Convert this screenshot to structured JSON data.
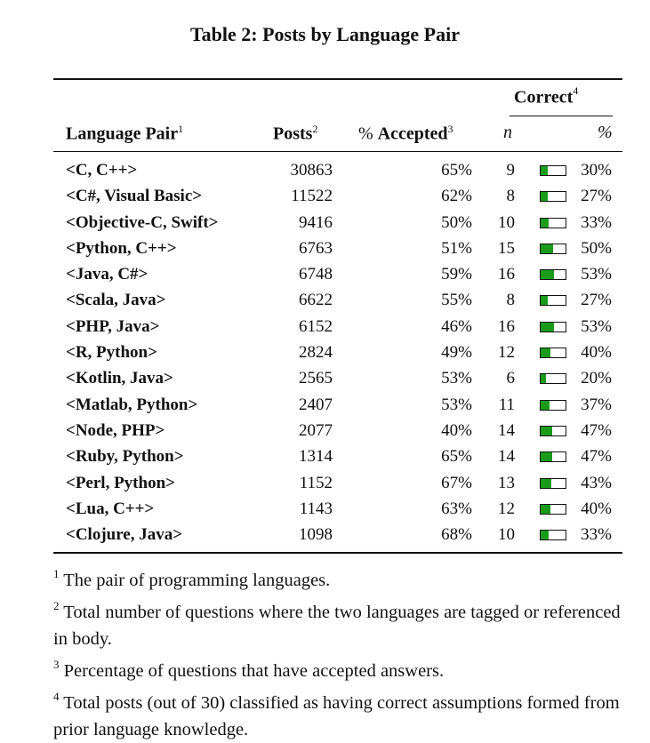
{
  "caption": "Table 2: Posts by Language Pair",
  "header": {
    "language_pair": "Language Pair",
    "language_pair_sup": "1",
    "posts": "Posts",
    "posts_sup": "2",
    "pct_symbol": "%",
    "accepted": "Accepted",
    "accepted_sup": "3",
    "correct": "Correct",
    "correct_sup": "4",
    "n": "n",
    "pct": "%"
  },
  "rows": [
    {
      "pair": "<C, C++>",
      "posts": "30863",
      "accepted": "65%",
      "n": "9",
      "correct": "30%",
      "fraction": 0.3
    },
    {
      "pair": "<C#, Visual Basic>",
      "posts": "11522",
      "accepted": "62%",
      "n": "8",
      "correct": "27%",
      "fraction": 0.27
    },
    {
      "pair": "<Objective-C, Swift>",
      "posts": "9416",
      "accepted": "50%",
      "n": "10",
      "correct": "33%",
      "fraction": 0.33
    },
    {
      "pair": "<Python, C++>",
      "posts": "6763",
      "accepted": "51%",
      "n": "15",
      "correct": "50%",
      "fraction": 0.5
    },
    {
      "pair": "<Java, C#>",
      "posts": "6748",
      "accepted": "59%",
      "n": "16",
      "correct": "53%",
      "fraction": 0.53
    },
    {
      "pair": "<Scala, Java>",
      "posts": "6622",
      "accepted": "55%",
      "n": "8",
      "correct": "27%",
      "fraction": 0.27
    },
    {
      "pair": "<PHP, Java>",
      "posts": "6152",
      "accepted": "46%",
      "n": "16",
      "correct": "53%",
      "fraction": 0.53
    },
    {
      "pair": "<R, Python>",
      "posts": "2824",
      "accepted": "49%",
      "n": "12",
      "correct": "40%",
      "fraction": 0.4
    },
    {
      "pair": "<Kotlin, Java>",
      "posts": "2565",
      "accepted": "53%",
      "n": "6",
      "correct": "20%",
      "fraction": 0.2
    },
    {
      "pair": "<Matlab, Python>",
      "posts": "2407",
      "accepted": "53%",
      "n": "11",
      "correct": "37%",
      "fraction": 0.37
    },
    {
      "pair": "<Node, PHP>",
      "posts": "2077",
      "accepted": "40%",
      "n": "14",
      "correct": "47%",
      "fraction": 0.47
    },
    {
      "pair": "<Ruby, Python>",
      "posts": "1314",
      "accepted": "65%",
      "n": "14",
      "correct": "47%",
      "fraction": 0.47
    },
    {
      "pair": "<Perl, Python>",
      "posts": "1152",
      "accepted": "67%",
      "n": "13",
      "correct": "43%",
      "fraction": 0.43
    },
    {
      "pair": "<Lua, C++>",
      "posts": "1143",
      "accepted": "63%",
      "n": "12",
      "correct": "40%",
      "fraction": 0.4
    },
    {
      "pair": "<Clojure, Java>",
      "posts": "1098",
      "accepted": "68%",
      "n": "10",
      "correct": "33%",
      "fraction": 0.33
    }
  ],
  "footnotes": [
    {
      "mark": "1",
      "text": "The pair of programming languages."
    },
    {
      "mark": "2",
      "text": "Total number of questions where the two languages are tagged or referenced in body."
    },
    {
      "mark": "3",
      "text": "Percentage of questions that have accepted answers."
    },
    {
      "mark": "4",
      "text": "Total posts (out of 30) classified as having correct assumptions formed from prior language knowledge."
    }
  ],
  "colors": {
    "bar_fill": "#1a9c1a"
  }
}
